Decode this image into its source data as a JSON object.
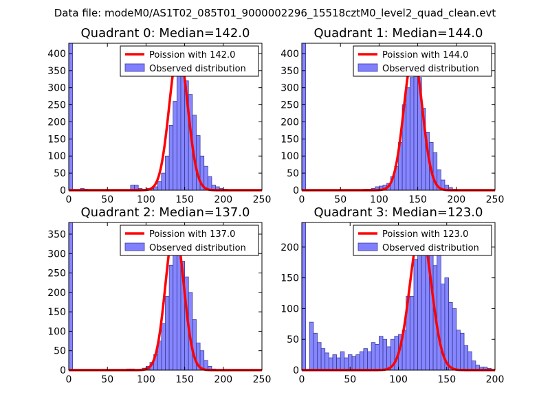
{
  "suptitle": "Data file: modeM0/AS1T02_085T01_9000002296_15518cztM0_level2_quad_clean.evt",
  "colors": {
    "bar_fill": "#8080ff",
    "bar_edge": "#3a3a9a",
    "poisson": "#ff0000"
  },
  "legend": {
    "observed": "Observed distribution"
  },
  "chart_data": [
    {
      "type": "bar",
      "title": "Quadrant 0: Median=142.0",
      "median": 142.0,
      "poisson_label": "Poission with 142.0",
      "poisson_peak": 410,
      "xlim": [
        0,
        250
      ],
      "ylim": [
        0,
        430
      ],
      "xticks": [
        0,
        50,
        100,
        150,
        200,
        250
      ],
      "yticks": [
        0,
        50,
        100,
        150,
        200,
        250,
        300,
        350,
        400
      ],
      "bin_width": 5,
      "bins": [
        [
          0,
          430
        ],
        [
          15,
          5
        ],
        [
          20,
          3
        ],
        [
          80,
          15
        ],
        [
          85,
          15
        ],
        [
          90,
          5
        ],
        [
          100,
          5
        ],
        [
          105,
          5
        ],
        [
          110,
          10
        ],
        [
          115,
          25
        ],
        [
          120,
          50
        ],
        [
          125,
          100
        ],
        [
          130,
          190
        ],
        [
          135,
          260
        ],
        [
          140,
          340
        ],
        [
          145,
          340
        ],
        [
          150,
          320
        ],
        [
          155,
          280
        ],
        [
          160,
          220
        ],
        [
          165,
          160
        ],
        [
          170,
          100
        ],
        [
          175,
          70
        ],
        [
          180,
          40
        ],
        [
          185,
          15
        ],
        [
          190,
          10
        ],
        [
          195,
          5
        ],
        [
          200,
          3
        ]
      ]
    },
    {
      "type": "bar",
      "title": "Quadrant 1: Median=144.0",
      "median": 144.0,
      "poisson_label": "Poission with 144.0",
      "poisson_peak": 395,
      "xlim": [
        0,
        250
      ],
      "ylim": [
        0,
        430
      ],
      "xticks": [
        0,
        50,
        100,
        150,
        200,
        250
      ],
      "yticks": [
        0,
        50,
        100,
        150,
        200,
        250,
        300,
        350,
        400
      ],
      "bin_width": 5,
      "bins": [
        [
          0,
          430
        ],
        [
          80,
          3
        ],
        [
          85,
          3
        ],
        [
          90,
          5
        ],
        [
          95,
          10
        ],
        [
          100,
          12
        ],
        [
          105,
          15
        ],
        [
          110,
          20
        ],
        [
          115,
          40
        ],
        [
          120,
          70
        ],
        [
          125,
          140
        ],
        [
          130,
          250
        ],
        [
          135,
          300
        ],
        [
          140,
          330
        ],
        [
          145,
          340
        ],
        [
          150,
          330
        ],
        [
          155,
          240
        ],
        [
          160,
          170
        ],
        [
          165,
          140
        ],
        [
          170,
          110
        ],
        [
          175,
          60
        ],
        [
          180,
          30
        ],
        [
          185,
          15
        ],
        [
          190,
          8
        ],
        [
          195,
          3
        ]
      ]
    },
    {
      "type": "bar",
      "title": "Quadrant 2: Median=137.0",
      "median": 137.0,
      "poisson_label": "Poission with 137.0",
      "poisson_peak": 368,
      "xlim": [
        0,
        250
      ],
      "ylim": [
        0,
        380
      ],
      "xticks": [
        0,
        50,
        100,
        150,
        200,
        250
      ],
      "yticks": [
        0,
        50,
        100,
        150,
        200,
        250,
        300,
        350
      ],
      "bin_width": 5,
      "bins": [
        [
          0,
          380
        ],
        [
          75,
          3
        ],
        [
          80,
          3
        ],
        [
          95,
          5
        ],
        [
          100,
          10
        ],
        [
          105,
          20
        ],
        [
          110,
          40
        ],
        [
          115,
          75
        ],
        [
          120,
          120
        ],
        [
          125,
          190
        ],
        [
          130,
          270
        ],
        [
          135,
          320
        ],
        [
          140,
          310
        ],
        [
          145,
          280
        ],
        [
          150,
          240
        ],
        [
          155,
          200
        ],
        [
          160,
          130
        ],
        [
          165,
          70
        ],
        [
          170,
          50
        ],
        [
          175,
          25
        ],
        [
          180,
          10
        ],
        [
          185,
          3
        ]
      ]
    },
    {
      "type": "bar",
      "title": "Quadrant 3: Median=123.0",
      "median": 123.0,
      "poisson_label": "Poission with 123.0",
      "poisson_peak": 230,
      "xlim": [
        0,
        200
      ],
      "ylim": [
        0,
        240
      ],
      "xticks": [
        0,
        50,
        100,
        150,
        200
      ],
      "yticks": [
        0,
        50,
        100,
        150,
        200
      ],
      "bin_width": 4,
      "bins": [
        [
          0,
          240
        ],
        [
          8,
          78
        ],
        [
          12,
          60
        ],
        [
          16,
          45
        ],
        [
          20,
          35
        ],
        [
          24,
          28
        ],
        [
          28,
          20
        ],
        [
          32,
          25
        ],
        [
          36,
          20
        ],
        [
          40,
          30
        ],
        [
          44,
          20
        ],
        [
          48,
          25
        ],
        [
          52,
          22
        ],
        [
          56,
          25
        ],
        [
          60,
          30
        ],
        [
          64,
          35
        ],
        [
          68,
          30
        ],
        [
          72,
          45
        ],
        [
          76,
          42
        ],
        [
          80,
          55
        ],
        [
          84,
          50
        ],
        [
          88,
          38
        ],
        [
          92,
          50
        ],
        [
          96,
          55
        ],
        [
          100,
          58
        ],
        [
          104,
          65
        ],
        [
          108,
          120
        ],
        [
          112,
          120
        ],
        [
          116,
          180
        ],
        [
          120,
          210
        ],
        [
          124,
          230
        ],
        [
          128,
          230
        ],
        [
          132,
          200
        ],
        [
          136,
          170
        ],
        [
          140,
          190
        ],
        [
          144,
          140
        ],
        [
          148,
          150
        ],
        [
          152,
          110
        ],
        [
          156,
          100
        ],
        [
          160,
          65
        ],
        [
          164,
          60
        ],
        [
          168,
          40
        ],
        [
          172,
          30
        ],
        [
          176,
          15
        ],
        [
          180,
          8
        ],
        [
          184,
          5
        ],
        [
          188,
          5
        ],
        [
          192,
          3
        ]
      ]
    }
  ]
}
